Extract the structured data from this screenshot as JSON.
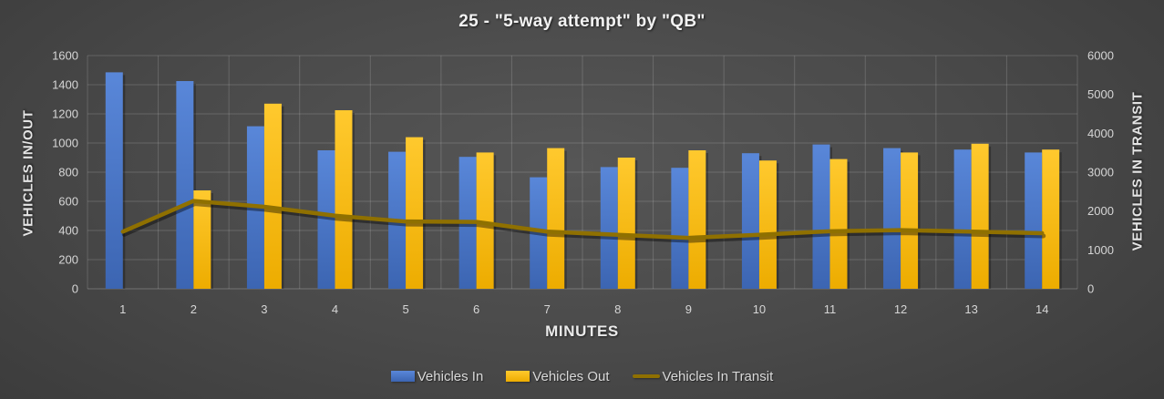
{
  "title": "25 - \"5-way attempt\" by \"QB\"",
  "colors": {
    "background": "#4A4A4A",
    "text": "#D9D9D9",
    "title_text": "#F2F2F2",
    "gridline": "rgba(255,255,255,0.16)",
    "vehicles_in": "#4472C4",
    "vehicles_in_light": "#5987D9",
    "vehicles_in_dark": "#3C65B2",
    "vehicles_out": "#FFC000",
    "vehicles_out_light": "#FFC92E",
    "vehicles_out_dark": "#EDAC00",
    "vehicles_in_transit": "#8F7000"
  },
  "chart_data": {
    "type": "combo-bar-line",
    "title": "25 - \"5-way attempt\" by \"QB\"",
    "categories": [
      1,
      2,
      3,
      4,
      5,
      6,
      7,
      8,
      9,
      10,
      11,
      12,
      13,
      14
    ],
    "xlabel": "MINUTES",
    "grid": true,
    "legend_position": "bottom",
    "left_axis": {
      "label": "VEHICLES IN/OUT",
      "min": 0,
      "max": 1600,
      "step": 200
    },
    "right_axis": {
      "label": "VEHICLES IN TRANSIT",
      "min": 0,
      "max": 6000,
      "step": 1000
    },
    "series": [
      {
        "name": "Vehicles In",
        "type": "bar",
        "axis": "left",
        "color": "#4472C4",
        "values": [
          1485,
          1425,
          1115,
          950,
          940,
          905,
          765,
          835,
          830,
          930,
          990,
          965,
          955,
          935
        ]
      },
      {
        "name": "Vehicles Out",
        "type": "bar",
        "axis": "left",
        "color": "#FFC000",
        "values": [
          0,
          675,
          1270,
          1225,
          1040,
          935,
          965,
          900,
          950,
          880,
          890,
          935,
          995,
          955
        ]
      },
      {
        "name": "Vehicles In Transit",
        "type": "line",
        "axis": "right",
        "color": "#8F7000",
        "values": [
          1470,
          2260,
          2110,
          1880,
          1730,
          1720,
          1470,
          1390,
          1310,
          1390,
          1480,
          1510,
          1470,
          1430
        ]
      }
    ]
  }
}
